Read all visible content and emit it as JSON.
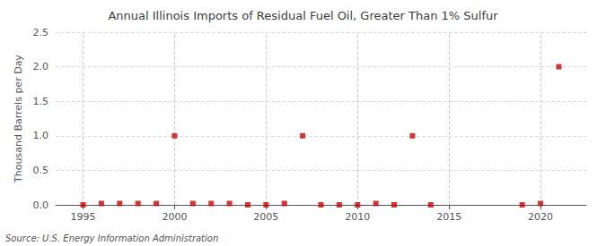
{
  "chart_data": {
    "type": "scatter",
    "title": "Annual Illinois Imports of Residual Fuel Oil, Greater Than 1% Sulfur",
    "ylabel": "Thousand Barrels per Day",
    "annotations": [
      "Source: U.S. Energy Information Administration"
    ],
    "x": [
      1995,
      1996,
      1997,
      1998,
      1999,
      2000,
      2001,
      2002,
      2003,
      2004,
      2005,
      2006,
      2007,
      2008,
      2009,
      2010,
      2011,
      2012,
      2013,
      2014,
      2019,
      2020,
      2021
    ],
    "values": [
      0.0,
      0.02,
      0.02,
      0.02,
      0.02,
      1.0,
      0.02,
      0.02,
      0.02,
      0.0,
      0.0,
      0.02,
      1.0,
      0.0,
      0.0,
      0.0,
      0.02,
      0.0,
      1.0,
      0.0,
      0.0,
      0.02,
      2.0
    ],
    "color": "#cc0000",
    "marker": "square",
    "xlim": [
      1993.5,
      2022.5
    ],
    "xticks": [
      1995,
      2000,
      2005,
      2010,
      2015,
      2020
    ],
    "ylim": [
      0,
      2.5
    ],
    "yticks": [
      {
        "value": 0,
        "label": "0.0"
      },
      {
        "value": 0.5,
        "label": "0.5"
      },
      {
        "value": 1,
        "label": "1.0"
      },
      {
        "value": 1.5,
        "label": "1.5"
      },
      {
        "value": 2,
        "label": "2.0"
      },
      {
        "value": 2.5,
        "label": "2.5"
      }
    ],
    "grid": true
  }
}
